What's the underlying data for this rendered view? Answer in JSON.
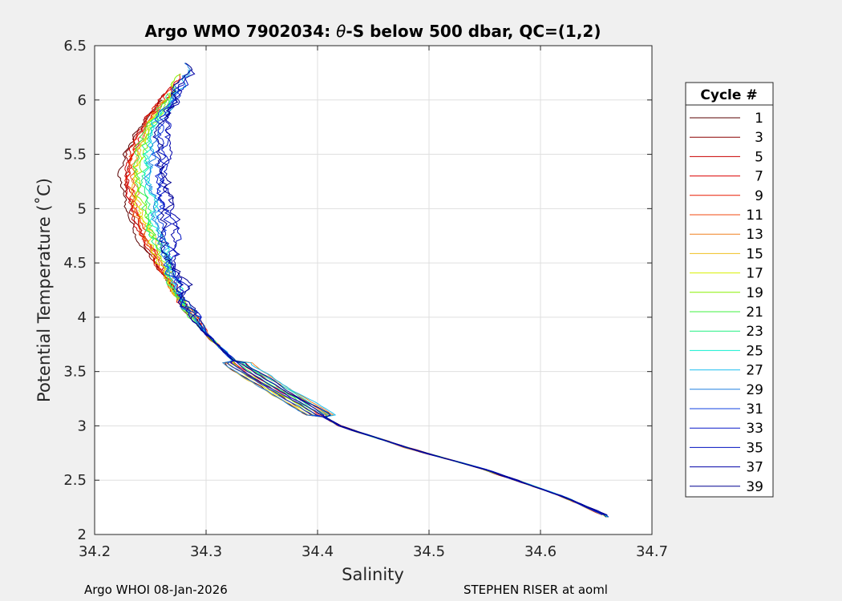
{
  "chart_data": {
    "type": "line",
    "title_parts": [
      "Argo WMO 7902034: ",
      "θ",
      "-S below 500 dbar,  QC=(1,2)"
    ],
    "xlabel": "Salinity",
    "ylabel": "Potential Temperature (˚C)",
    "xlim": [
      34.2,
      34.7
    ],
    "ylim": [
      2,
      6.5
    ],
    "xticks": [
      34.2,
      34.3,
      34.4,
      34.5,
      34.6,
      34.7
    ],
    "xtick_labels": [
      "34.2",
      "34.3",
      "34.4",
      "34.5",
      "34.6",
      "34.7"
    ],
    "yticks": [
      2,
      2.5,
      3,
      3.5,
      4,
      4.5,
      5,
      5.5,
      6,
      6.5
    ],
    "ytick_labels": [
      "2",
      "2.5",
      "3",
      "3.5",
      "4",
      "4.5",
      "5",
      "5.5",
      "6",
      "6.5"
    ],
    "grid": true,
    "legend_title": "Cycle #",
    "legend_position": "right-outside",
    "base_profile": {
      "temperature": [
        6.28,
        6.0,
        5.8,
        5.5,
        5.3,
        5.0,
        4.7,
        4.4,
        4.1,
        3.85,
        3.55,
        3.3,
        3.0,
        2.8,
        2.6,
        2.35,
        2.17
      ],
      "salinity": [
        34.28,
        34.265,
        34.25,
        34.24,
        34.238,
        34.243,
        34.252,
        34.266,
        34.281,
        34.3,
        34.33,
        34.37,
        34.42,
        34.48,
        34.55,
        34.62,
        34.66
      ]
    },
    "series": [
      {
        "name": "1",
        "color": "#5a0000",
        "upper_salinity_offset": -0.016
      },
      {
        "name": "3",
        "color": "#8b0000",
        "upper_salinity_offset": -0.013
      },
      {
        "name": "5",
        "color": "#c80000",
        "upper_salinity_offset": -0.011
      },
      {
        "name": "7",
        "color": "#dc0000",
        "upper_salinity_offset": -0.01
      },
      {
        "name": "9",
        "color": "#e81a00",
        "upper_salinity_offset": -0.008
      },
      {
        "name": "11",
        "color": "#f04a10",
        "upper_salinity_offset": -0.006
      },
      {
        "name": "13",
        "color": "#f08020",
        "upper_salinity_offset": -0.004
      },
      {
        "name": "15",
        "color": "#f0c020",
        "upper_salinity_offset": -0.003
      },
      {
        "name": "17",
        "color": "#d8f000",
        "upper_salinity_offset": -0.002
      },
      {
        "name": "19",
        "color": "#88f000",
        "upper_salinity_offset": 0.0
      },
      {
        "name": "21",
        "color": "#40f040",
        "upper_salinity_offset": 0.002
      },
      {
        "name": "23",
        "color": "#20f080",
        "upper_salinity_offset": 0.004
      },
      {
        "name": "25",
        "color": "#10f0d0",
        "upper_salinity_offset": 0.007
      },
      {
        "name": "27",
        "color": "#20c0f0",
        "upper_salinity_offset": 0.01
      },
      {
        "name": "29",
        "color": "#2080e0",
        "upper_salinity_offset": 0.014
      },
      {
        "name": "31",
        "color": "#1040e0",
        "upper_salinity_offset": 0.018
      },
      {
        "name": "33",
        "color": "#0818c8",
        "upper_salinity_offset": 0.021
      },
      {
        "name": "35",
        "color": "#0010c0",
        "upper_salinity_offset": 0.024
      },
      {
        "name": "37",
        "color": "#0000a8",
        "upper_salinity_offset": 0.026
      },
      {
        "name": "39",
        "color": "#000090",
        "upper_salinity_offset": 0.025
      }
    ]
  },
  "footer": {
    "left": "Argo WHOI 08-Jan-2026",
    "right": "STEPHEN RISER at aoml"
  }
}
